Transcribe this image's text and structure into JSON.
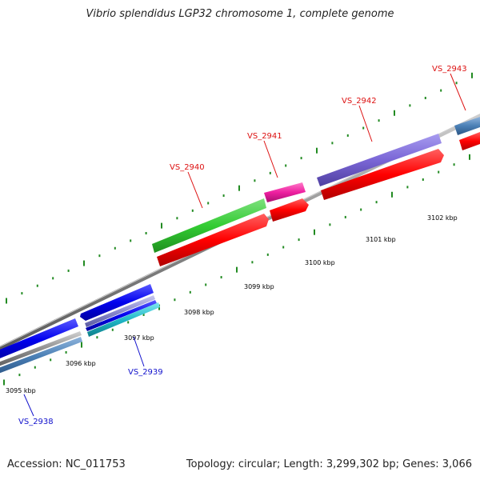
{
  "title": "Vibrio splendidus LGP32 chromosome 1, complete genome",
  "footer": {
    "accession": "Accession: NC_011753",
    "summary": "Topology: circular; Length: 3,299,302 bp; Genes: 3,066"
  },
  "colors": {
    "forward_label": "#dd1111",
    "reverse_label": "#1111cc",
    "backbone": "#888888",
    "tick": "#228B22"
  },
  "kbp_labels": [
    "3095 kbp",
    "3096 kbp",
    "3097 kbp",
    "3098 kbp",
    "3099 kbp",
    "3100 kbp",
    "3101 kbp",
    "3102 kbp"
  ],
  "genes": [
    {
      "label": "VS_2938",
      "strand": "reverse"
    },
    {
      "label": "VS_2939",
      "strand": "reverse"
    },
    {
      "label": "VS_2940",
      "strand": "forward"
    },
    {
      "label": "VS_2941",
      "strand": "forward"
    },
    {
      "label": "VS_2942",
      "strand": "forward"
    },
    {
      "label": "VS_2943",
      "strand": "forward"
    }
  ]
}
